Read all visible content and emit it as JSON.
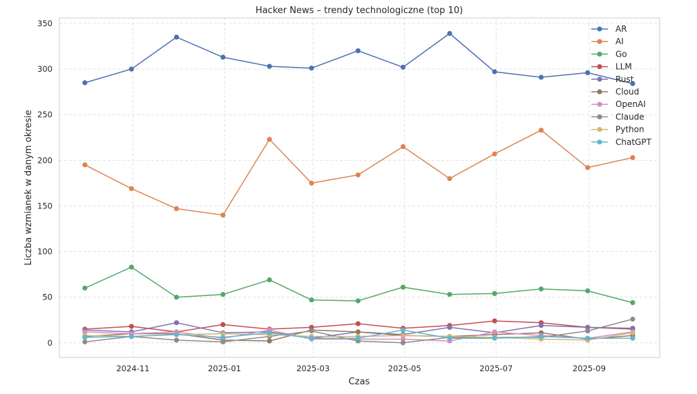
{
  "chart_data": {
    "type": "line",
    "title": "Hacker News – trendy technologiczne (top 10)",
    "xlabel": "Czas",
    "ylabel": "Liczba wzmianek w danym okresie",
    "x": [
      "2024-09-30",
      "2024-10-31",
      "2024-11-30",
      "2024-12-31",
      "2025-01-31",
      "2025-02-28",
      "2025-03-31",
      "2025-04-30",
      "2025-05-31",
      "2025-06-30",
      "2025-07-31",
      "2025-08-31",
      "2025-09-30"
    ],
    "xticks": [
      {
        "date": "2024-11-01",
        "label": "2024-11"
      },
      {
        "date": "2025-01-01",
        "label": "2025-01"
      },
      {
        "date": "2025-03-01",
        "label": "2025-03"
      },
      {
        "date": "2025-05-01",
        "label": "2025-05"
      },
      {
        "date": "2025-07-01",
        "label": "2025-07"
      },
      {
        "date": "2025-09-01",
        "label": "2025-09"
      }
    ],
    "xlim": [
      "2024-09-13",
      "2025-10-18"
    ],
    "yticks": [
      0,
      50,
      100,
      150,
      200,
      250,
      300,
      350
    ],
    "ylim": [
      -16,
      356
    ],
    "grid": true,
    "legend_position": "top-right",
    "series": [
      {
        "name": "AR",
        "color": "#4c72b0",
        "values": [
          285,
          300,
          335,
          313,
          303,
          301,
          320,
          302,
          339,
          297,
          291,
          296,
          284
        ]
      },
      {
        "name": "AI",
        "color": "#dd8452",
        "values": [
          195,
          169,
          147,
          140,
          223,
          175,
          184,
          215,
          180,
          207,
          233,
          192,
          203
        ]
      },
      {
        "name": "Go",
        "color": "#55a868",
        "values": [
          60,
          83,
          50,
          53,
          69,
          47,
          46,
          61,
          53,
          54,
          59,
          57,
          44
        ]
      },
      {
        "name": "LLM",
        "color": "#c44e52",
        "values": [
          15,
          18,
          12,
          20,
          15,
          17,
          21,
          16,
          19,
          24,
          22,
          17,
          15
        ]
      },
      {
        "name": "Rust",
        "color": "#8172b3",
        "values": [
          14,
          12,
          22,
          11,
          12,
          5,
          12,
          9,
          17,
          11,
          19,
          17,
          16
        ]
      },
      {
        "name": "Cloud",
        "color": "#937860",
        "values": [
          7,
          10,
          10,
          3,
          2,
          14,
          12,
          8,
          7,
          9,
          11,
          4,
          8
        ]
      },
      {
        "name": "OpenAI",
        "color": "#da8bc3",
        "values": [
          12,
          10,
          12,
          5,
          14,
          4,
          4,
          4,
          2,
          12,
          8,
          5,
          12
        ]
      },
      {
        "name": "Claude",
        "color": "#8c8c8c",
        "values": [
          1,
          7,
          3,
          1,
          7,
          13,
          2,
          0,
          6,
          6,
          6,
          13,
          26
        ]
      },
      {
        "name": "Python",
        "color": "#ccb974",
        "values": [
          8,
          7,
          9,
          10,
          9,
          7,
          7,
          8,
          7,
          6,
          4,
          3,
          11
        ]
      },
      {
        "name": "ChatGPT",
        "color": "#64b5cd",
        "values": [
          6,
          7,
          9,
          6,
          11,
          5,
          5,
          14,
          5,
          5,
          7,
          5,
          5
        ]
      }
    ]
  }
}
